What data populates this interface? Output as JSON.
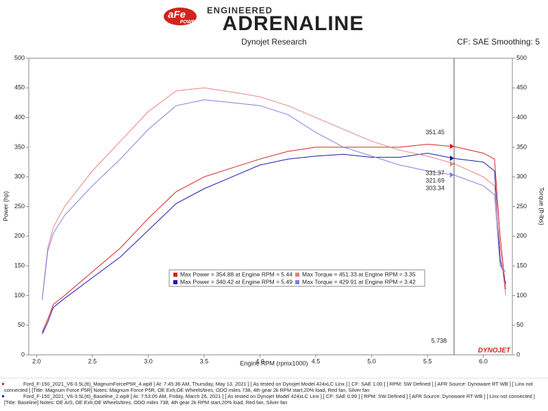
{
  "chart_data": {
    "type": "line",
    "brand": "aFe",
    "brand_sub": "POWER",
    "header_top": "ENGINEERED",
    "header_main": "ADRENALINE",
    "title": "Dynojet Research",
    "subtitle": "CF: SAE Smoothing: 5",
    "xlabel": "Engine RPM (rpmx1000)",
    "ylabel": "Power (hp)",
    "y2label": "Torque (ft-lbs)",
    "watermark": "DYNOJET",
    "x": [
      2.05,
      2.1,
      2.15,
      2.25,
      2.5,
      2.75,
      3.0,
      3.25,
      3.5,
      3.75,
      4.0,
      4.25,
      4.5,
      4.75,
      5.0,
      5.25,
      5.5,
      5.74,
      6.0,
      6.1,
      6.15,
      6.2
    ],
    "series": [
      {
        "name": "Max Power = 354.88 at Engine RPM = 5.44",
        "color": "#d62020",
        "cursor_value": 351.45,
        "values": [
          38,
          60,
          85,
          100,
          140,
          180,
          230,
          275,
          300,
          315,
          330,
          343,
          350,
          350,
          350,
          350,
          355,
          351,
          340,
          330,
          200,
          110
        ]
      },
      {
        "name": "Max Power = 340.42 at Engine RPM = 5.49",
        "color": "#1a1aa6",
        "cursor_value": 331.37,
        "values": [
          35,
          55,
          80,
          95,
          130,
          165,
          210,
          255,
          280,
          300,
          320,
          330,
          335,
          338,
          333,
          333,
          340,
          331,
          325,
          310,
          160,
          120
        ]
      },
      {
        "name": "Max Torque = 451.33 at Engine RPM = 3.35",
        "color": "#e88080",
        "axis": "y2",
        "cursor_value": 321.69,
        "values": [
          95,
          180,
          215,
          250,
          310,
          360,
          410,
          445,
          450,
          443,
          435,
          420,
          400,
          380,
          360,
          345,
          335,
          322,
          300,
          285,
          180,
          100
        ]
      },
      {
        "name": "Max Torque = 429.91 at Engine RPM = 3.42",
        "color": "#7f7fe0",
        "axis": "y2",
        "cursor_value": 303.34,
        "values": [
          92,
          175,
          205,
          235,
          285,
          330,
          380,
          420,
          430,
          425,
          420,
          405,
          375,
          350,
          335,
          320,
          310,
          303,
          285,
          270,
          150,
          140
        ]
      }
    ],
    "cursor": 5.738,
    "xlim": [
      1.93,
      6.26
    ],
    "xticks": [
      {
        "value": 2,
        "label": "2.0"
      },
      2.5,
      {
        "value": 3,
        "label": "3.0"
      },
      3.5,
      {
        "value": 4,
        "label": "4.0"
      },
      4.5,
      {
        "value": 5,
        "label": "5.0"
      },
      5.5,
      {
        "value": 6,
        "label": "6.0"
      }
    ],
    "ylim": [
      0,
      500
    ],
    "yticks": [
      0,
      50,
      100,
      150,
      200,
      250,
      300,
      350,
      400,
      450,
      500
    ],
    "y2lim": [
      0,
      500
    ],
    "y2ticks": [
      0,
      50,
      100,
      150,
      200,
      250,
      300,
      350,
      400,
      450,
      500
    ],
    "grid": false,
    "footer": [
      {
        "color": "#d62020",
        "lines": [
          "Ford_F-150_2021_V6-3.5L(tt)_MagnumForceP5R_4.wp8 [ At: 7:45:36 AM, Thursday, May 13, 2021 ] [ As tested on Dynojet Model 424xLC Linx ] [ CF: SAE 1.00 ] [ RPM: SW Defined ] [ AFR Source: Dynoware RT WB ] [ Linx not",
          "connected ] [Title: Magnum Force P5R]  Notes: Magnum Force P5R, OE Exh,OE Wheels/tires, ODO miles 738, 4th gear 2k RPM start,20% load, Red fan, Silver fan"
        ]
      },
      {
        "color": "#1a1aa6",
        "lines": [
          "Ford_F-150_2021_V6-3.5L(tt)_Baseline_2.wp8 [ At: 7:53:05 AM, Friday, March 26, 2021 ] [ As tested on Dynojet Model 424xLC Linx ] [ CF: SAE 0.99 ] [ RPM: SW Defined ] [ AFR Source: Dynoware RT WB ] [ Linx not connected ]",
          "[Title: Baseline]  Notes: OE AIS, OE Exh,OE Wheels/tires, ODO miles 738, 4th gear 2k RPM start,20% load, Red fan, Silver fan"
        ]
      }
    ]
  }
}
